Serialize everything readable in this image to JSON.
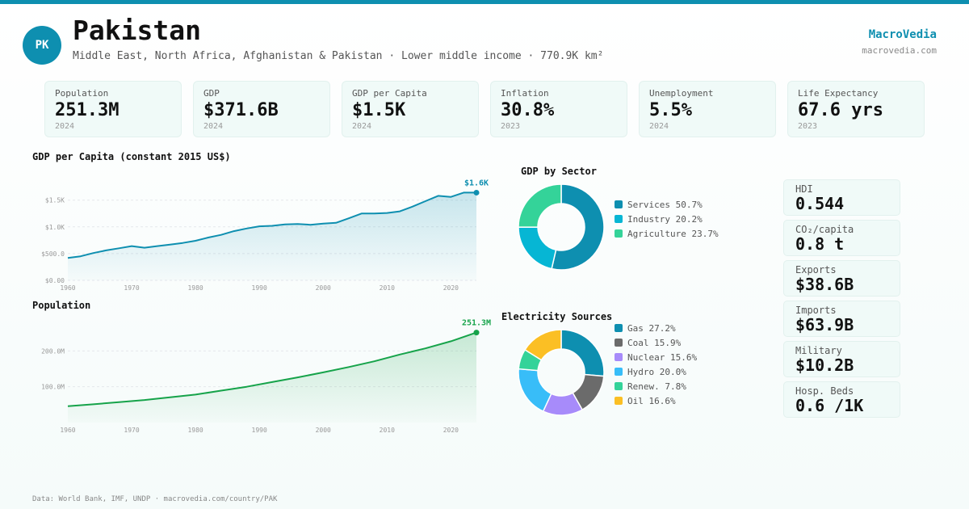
{
  "header": {
    "badge": "PK",
    "country": "Pakistan",
    "subtitle": "Middle East, North Africa, Afghanistan & Pakistan · Lower middle income · 770.9K km²",
    "brand": "MacroVedia",
    "brand_url": "macrovedia.com"
  },
  "stats": [
    {
      "label": "Population",
      "value": "251.3M",
      "year": "2024"
    },
    {
      "label": "GDP",
      "value": "$371.6B",
      "year": "2024"
    },
    {
      "label": "GDP per Capita",
      "value": "$1.5K",
      "year": "2024"
    },
    {
      "label": "Inflation",
      "value": "30.8%",
      "year": "2023"
    },
    {
      "label": "Unemployment",
      "value": "5.5%",
      "year": "2024"
    },
    {
      "label": "Life Expectancy",
      "value": "67.6 yrs",
      "year": "2023"
    }
  ],
  "side": [
    {
      "label": "HDI",
      "value": "0.544"
    },
    {
      "label": "CO₂/capita",
      "value": "0.8 t"
    },
    {
      "label": "Exports",
      "value": "$38.6B"
    },
    {
      "label": "Imports",
      "value": "$63.9B"
    },
    {
      "label": "Military",
      "value": "$10.2B"
    },
    {
      "label": "Hosp. Beds",
      "value": "0.6 /1K"
    }
  ],
  "footer": "Data: World Bank, IMF, UNDP · macrovedia.com/country/PAK",
  "colors": {
    "accent": "#0e8fb0",
    "pop": "#16a34a"
  },
  "chart_data": [
    {
      "type": "area",
      "title": "GDP per Capita (constant 2015 US$)",
      "end_label": "$1.6K",
      "color": "#0e8fb0",
      "x": [
        1960,
        1962,
        1964,
        1966,
        1968,
        1970,
        1972,
        1974,
        1976,
        1978,
        1980,
        1982,
        1984,
        1986,
        1988,
        1990,
        1992,
        1994,
        1996,
        1998,
        2000,
        2002,
        2004,
        2006,
        2008,
        2010,
        2012,
        2014,
        2016,
        2018,
        2020,
        2022,
        2024
      ],
      "y": [
        420,
        450,
        510,
        560,
        600,
        640,
        610,
        640,
        670,
        700,
        740,
        800,
        850,
        920,
        970,
        1010,
        1020,
        1045,
        1055,
        1040,
        1060,
        1075,
        1160,
        1250,
        1250,
        1260,
        1290,
        1380,
        1480,
        1580,
        1560,
        1640,
        1640
      ],
      "ylim": [
        0,
        2100
      ],
      "yticks": [
        0,
        500,
        1000,
        1500
      ],
      "ytick_labels": [
        "$0.00",
        "$500.0",
        "$1.0K",
        "$1.5K"
      ],
      "xticks": [
        1960,
        1970,
        1980,
        1990,
        2000,
        2010,
        2020
      ],
      "xtick_labels": [
        "1960",
        "1970",
        "1980",
        "1990",
        "2000",
        "2010",
        "2020"
      ]
    },
    {
      "type": "area",
      "title": "Population",
      "end_label": "251.3M",
      "color": "#16a34a",
      "x": [
        1960,
        1964,
        1968,
        1972,
        1976,
        1980,
        1984,
        1988,
        1992,
        1996,
        2000,
        2004,
        2008,
        2012,
        2016,
        2020,
        2024
      ],
      "y": [
        45.7,
        51,
        57,
        63,
        70.5,
        78,
        89,
        100,
        113,
        126,
        140,
        155,
        171,
        190,
        207,
        227,
        251.3
      ],
      "ylim": [
        0,
        300
      ],
      "yticks": [
        100,
        200
      ],
      "ytick_labels": [
        "100.0M",
        "200.0M"
      ],
      "xticks": [
        1960,
        1970,
        1980,
        1990,
        2000,
        2010,
        2020
      ],
      "xtick_labels": [
        "1960",
        "1970",
        "1980",
        "1990",
        "2000",
        "2010",
        "2020"
      ]
    },
    {
      "type": "pie",
      "title": "GDP by Sector",
      "categories": [
        "Services",
        "Industry",
        "Agriculture"
      ],
      "values": [
        50.7,
        20.2,
        23.7
      ],
      "labels": [
        "Services 50.7%",
        "Industry 20.2%",
        "Agriculture 23.7%"
      ],
      "colors": [
        "#0e8fb0",
        "#06b6d4",
        "#34d399"
      ]
    },
    {
      "type": "pie",
      "title": "Electricity Sources",
      "categories": [
        "Gas",
        "Coal",
        "Nuclear",
        "Hydro",
        "Renew.",
        "Oil"
      ],
      "values": [
        27.2,
        15.9,
        15.6,
        20.0,
        7.8,
        16.6
      ],
      "labels": [
        "Gas 27.2%",
        "Coal 15.9%",
        "Nuclear 15.6%",
        "Hydro 20.0%",
        "Renew. 7.8%",
        "Oil 16.6%"
      ],
      "colors": [
        "#0e8fb0",
        "#6b6b6b",
        "#a78bfa",
        "#38bdf8",
        "#34d399",
        "#fbbf24"
      ]
    }
  ]
}
